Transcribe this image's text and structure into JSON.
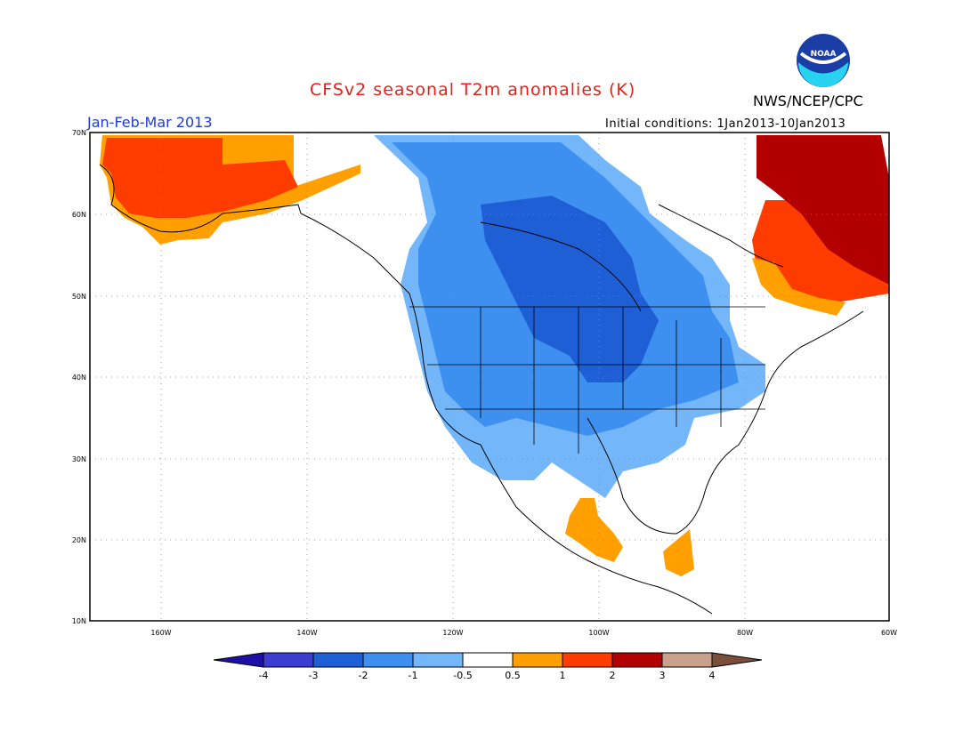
{
  "header": {
    "title": "CFSv2 seasonal T2m anomalies (K)",
    "agency": "NWS/NCEP/CPC",
    "logo_text": "NOAA",
    "season": "Jan-Feb-Mar 2013",
    "initial_conditions": "Initial conditions: 1Jan2013-10Jan2013"
  },
  "map": {
    "lon_range": [
      -172,
      -60
    ],
    "lat_range": [
      10,
      70
    ],
    "lat_labels": [
      "70N",
      "60N",
      "50N",
      "40N",
      "30N",
      "20N",
      "10N"
    ],
    "lon_labels": [
      "160W",
      "140W",
      "120W",
      "100W",
      "80W",
      "60W"
    ],
    "background": "#ffffff",
    "coast_color": "#000000"
  },
  "colorbar": {
    "tick_labels": [
      "-4",
      "-3",
      "-2",
      "-1",
      "-0.5",
      "0.5",
      "1",
      "2",
      "3",
      "4"
    ],
    "colors": [
      "#1e0fa6",
      "#3c3cd3",
      "#1f5fd6",
      "#3d8ff0",
      "#74b6fa",
      "#ffffff",
      "#ffa000",
      "#ff3c00",
      "#b20000",
      "#c8a08c",
      "#7a4e3a"
    ]
  },
  "anomaly_regions": [
    {
      "name": "alaska-warm",
      "category": "1 to 2",
      "color": "#ff3c00"
    },
    {
      "name": "alaska-margin",
      "category": "0.5 to 1",
      "color": "#ffa000"
    },
    {
      "name": "canada-cold-core",
      "category": "-3 to -2",
      "color": "#1f5fd6"
    },
    {
      "name": "canada-cold",
      "category": "-2 to -1",
      "color": "#3d8ff0"
    },
    {
      "name": "conus-cool",
      "category": "-1 to -0.5",
      "color": "#74b6fa"
    },
    {
      "name": "east-canada-warm",
      "category": "2 to 3",
      "color": "#b20000"
    },
    {
      "name": "mexico-warm",
      "category": "0.5 to 1",
      "color": "#ffa000"
    }
  ]
}
